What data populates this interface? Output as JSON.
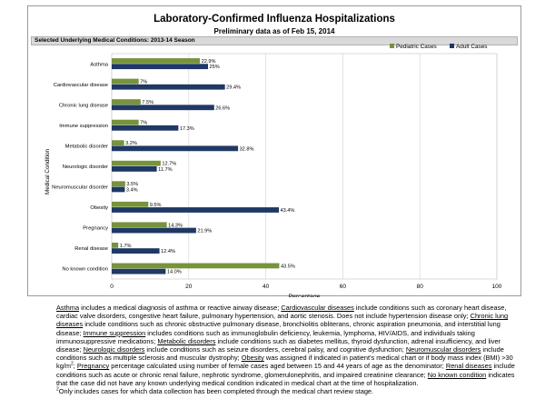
{
  "chart_data": {
    "type": "bar",
    "orientation": "horizontal",
    "title": "Laboratory-Confirmed Influenza Hospitalizations",
    "subtitle": "Preliminary data as of Feb 15, 2014",
    "panel_title": "Selected Underlying Medical Conditions: 2013-14 Season",
    "xlabel": "Percentage",
    "ylabel": "Medical Condition",
    "xlim": [
      0,
      100
    ],
    "xticks": [
      0,
      20,
      40,
      60,
      80,
      100
    ],
    "grid": true,
    "legend_position": "top-right",
    "categories": [
      "Asthma",
      "Cardiovascular disease",
      "Chronic lung disease",
      "Immune suppression",
      "Metabolic disorder",
      "Neurologic disorder",
      "Neuromuscular disorder",
      "Obesity",
      "Pregnancy",
      "Renal disease",
      "No known condition"
    ],
    "series": [
      {
        "name": "Pediatric Cases",
        "color": "#77933c",
        "values": [
          22.9,
          7,
          7.5,
          7,
          3.2,
          12.7,
          3.5,
          9.5,
          14.3,
          1.7,
          43.5
        ],
        "labels": [
          "22.9%",
          "7%",
          "7.5%",
          "7%",
          "3.2%",
          "12.7%",
          "3.5%",
          "9.5%",
          "14.3%",
          "1.7%",
          "43.5%"
        ]
      },
      {
        "name": "Adult Cases",
        "color": "#1f3864",
        "values": [
          25,
          29.4,
          26.6,
          17.3,
          32.8,
          11.7,
          3.4,
          43.4,
          21.9,
          12.4,
          14
        ],
        "labels": [
          "25%",
          "29.4%",
          "26.6%",
          "17.3%",
          "32.8%",
          "11.7%",
          "3.4%",
          "43.4%",
          "21.9%",
          "12.4%",
          "14.0%"
        ]
      }
    ]
  },
  "footnote": {
    "segments": [
      {
        "t": "Asthma",
        "u": true
      },
      {
        "t": " includes a medical diagnosis of asthma or reactive airway disease; "
      },
      {
        "t": "Cardiovascular diseases",
        "u": true
      },
      {
        "t": " include conditions such as coronary heart disease, cardiac valve disorders, congestive heart failure, pulmonary hypertension, and aortic stenosis.  Does not include hypertension disease only;  "
      },
      {
        "t": "Chronic lung diseases",
        "u": true
      },
      {
        "t": " include conditions such as chronic obstructive pulmonary disease, bronchiolitis obliterans, chronic aspiration pneumonia, and interstitial lung disease;  "
      },
      {
        "t": "Immune suppression",
        "u": true
      },
      {
        "t": " includes conditions such as immunoglobulin deficiency, leukemia, lymphoma, HIV/AIDS, and individuals taking immunosuppressive medications; "
      },
      {
        "t": "Metabolic disorders",
        "u": true
      },
      {
        "t": " include conditions such as diabetes mellitus, thyroid dysfunction, adrenal insufficiency, and liver disease;  "
      },
      {
        "t": "Neurologic disorders",
        "u": true
      },
      {
        "t": " include conditions such as seizure disorders, cerebral palsy, and cognitive dysfunction;  "
      },
      {
        "t": "Neuromuscular disorders",
        "u": true
      },
      {
        "t": " include conditions such as multiple sclerosis and muscular dystrophy;  "
      },
      {
        "t": "Obesity",
        "u": true
      },
      {
        "t": " was assigned if indicated in patient's medical chart or if body mass index (BMI) >30 kg/m"
      },
      {
        "t": "2",
        "sup": true
      },
      {
        "t": ";  "
      },
      {
        "t": "Pregnancy",
        "u": true
      },
      {
        "t": " percentage calculated using number of female cases aged between 15 and 44 years of age as the denominator;  "
      },
      {
        "t": "Renal diseases",
        "u": true
      },
      {
        "t": " include conditions such as acute or chronic renal failure, nephrotic syndrome, glomerulonephritis, and impaired creatinine clearance;  "
      },
      {
        "t": "No known condition",
        "u": true
      },
      {
        "t": " indicates that the case did not have any known underlying medical condition indicated in medical chart at the time of hospitalization."
      }
    ],
    "note_marker": "2",
    "note_text": "Only includes cases for which data collection has been completed through the medical chart review stage."
  }
}
